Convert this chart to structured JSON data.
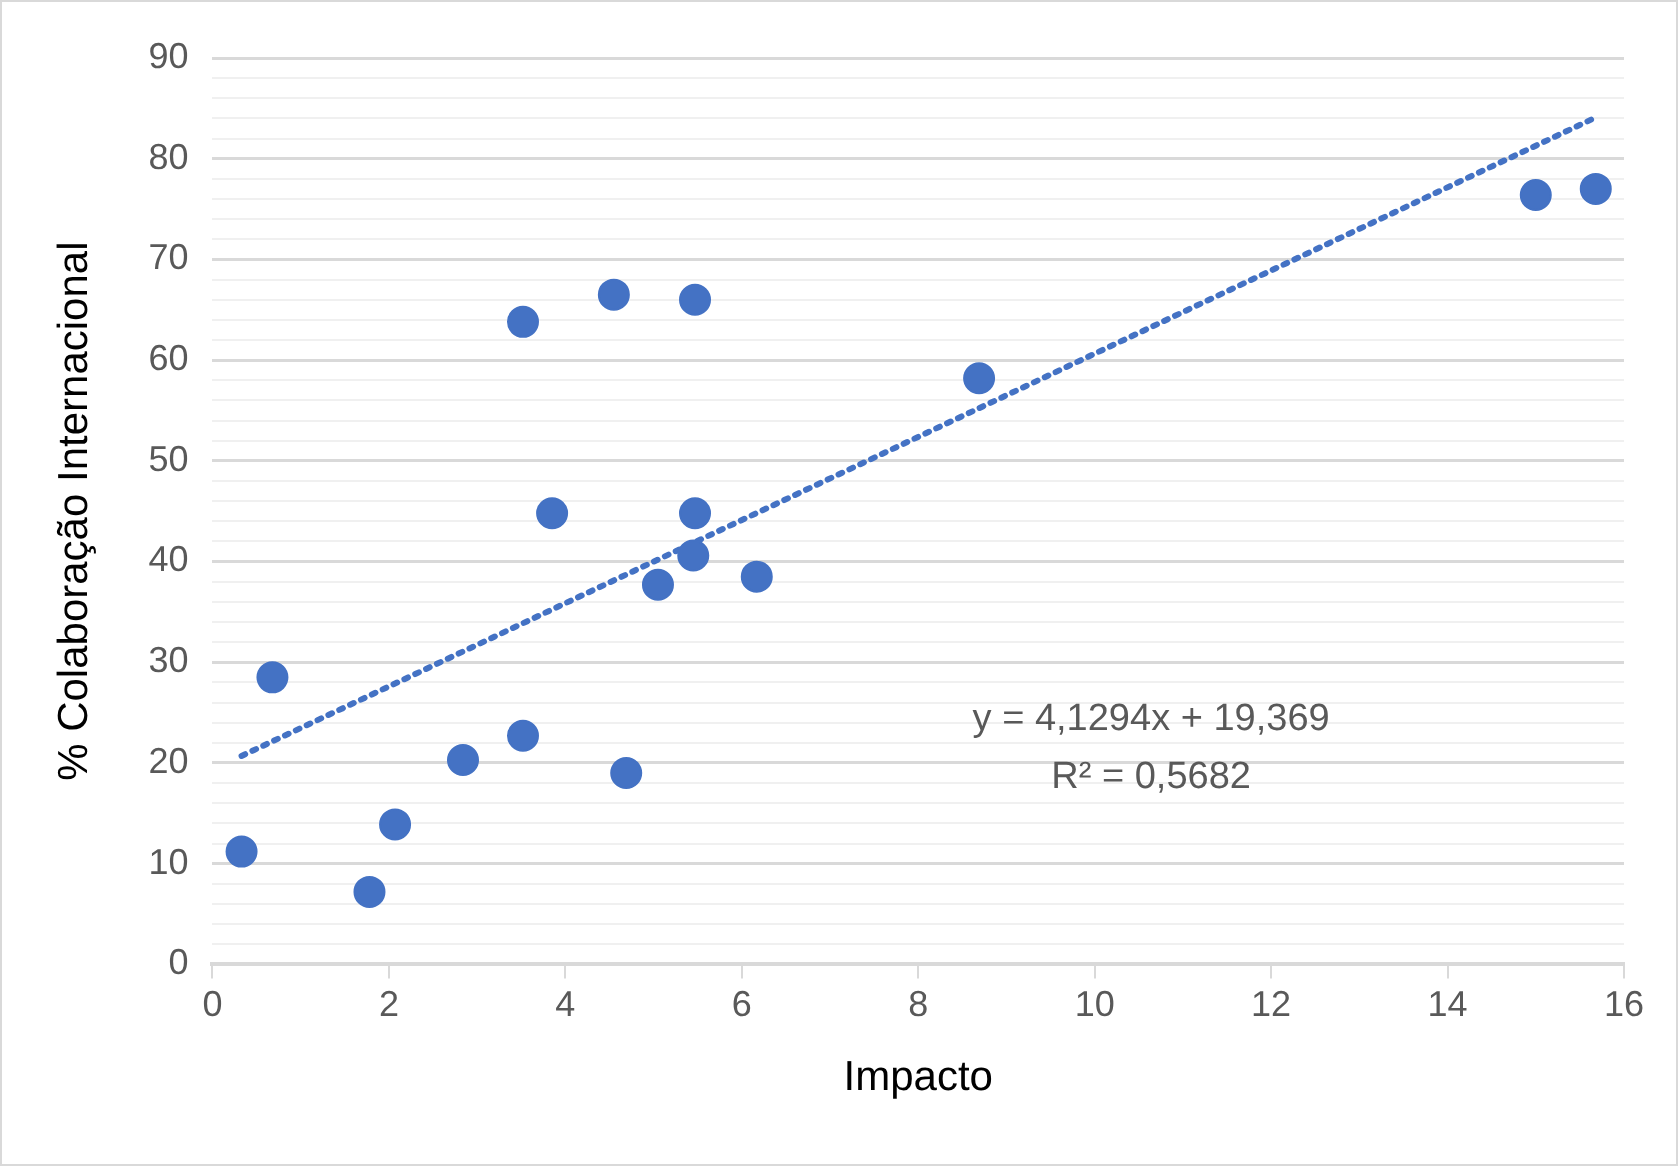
{
  "chart_data": {
    "type": "scatter",
    "xlabel": "Impacto",
    "ylabel": "% Colaboração Internacional",
    "series": [
      {
        "type": "scatter",
        "color": "#4472c4",
        "marker": "circle",
        "x": [
          0.33,
          0.68,
          1.78,
          2.07,
          2.84,
          3.52,
          3.52,
          3.85,
          4.55,
          4.69,
          5.05,
          5.45,
          5.47,
          5.47,
          6.17,
          8.69,
          15.0,
          15.68
        ],
        "values": [
          11.2,
          28.5,
          7.2,
          13.9,
          20.3,
          63.8,
          22.7,
          44.8,
          66.5,
          19.0,
          37.7,
          40.6,
          66.0,
          44.8,
          38.5,
          58.2,
          76.4,
          77.0
        ]
      },
      {
        "type": "line",
        "color": "#4472c4",
        "marker": "none",
        "line_style": "dotted",
        "x": [
          0.33,
          15.68
        ],
        "values": [
          20.7,
          84.1
        ]
      }
    ],
    "annotations": [
      "y = 4,1294x + 19,369",
      "R² = 0,5682"
    ],
    "xlim": [
      0,
      16
    ],
    "xticks": [
      0,
      2,
      4,
      6,
      8,
      10,
      12,
      14,
      16
    ],
    "ylim": [
      0,
      90
    ],
    "yticks": [
      0,
      {
        "value": 2,
        "label": null
      },
      {
        "value": 4,
        "label": null
      },
      {
        "value": 6,
        "label": null
      },
      {
        "value": 8,
        "label": null
      },
      10,
      {
        "value": 12,
        "label": null
      },
      {
        "value": 14,
        "label": null
      },
      {
        "value": 16,
        "label": null
      },
      {
        "value": 18,
        "label": null
      },
      20,
      {
        "value": 22,
        "label": null
      },
      {
        "value": 24,
        "label": null
      },
      {
        "value": 26,
        "label": null
      },
      {
        "value": 28,
        "label": null
      },
      30,
      {
        "value": 32,
        "label": null
      },
      {
        "value": 34,
        "label": null
      },
      {
        "value": 36,
        "label": null
      },
      {
        "value": 38,
        "label": null
      },
      40,
      {
        "value": 42,
        "label": null
      },
      {
        "value": 44,
        "label": null
      },
      {
        "value": 46,
        "label": null
      },
      {
        "value": 48,
        "label": null
      },
      50,
      {
        "value": 52,
        "label": null
      },
      {
        "value": 54,
        "label": null
      },
      {
        "value": 56,
        "label": null
      },
      {
        "value": 58,
        "label": null
      },
      60,
      {
        "value": 62,
        "label": null
      },
      {
        "value": 64,
        "label": null
      },
      {
        "value": 66,
        "label": null
      },
      {
        "value": 68,
        "label": null
      },
      70,
      {
        "value": 72,
        "label": null
      },
      {
        "value": 74,
        "label": null
      },
      {
        "value": 76,
        "label": null
      },
      {
        "value": 78,
        "label": null
      },
      80,
      {
        "value": 82,
        "label": null
      },
      {
        "value": 84,
        "label": null
      },
      {
        "value": 86,
        "label": null
      },
      {
        "value": 88,
        "label": null
      },
      90
    ],
    "grid": "y",
    "legend": false
  }
}
